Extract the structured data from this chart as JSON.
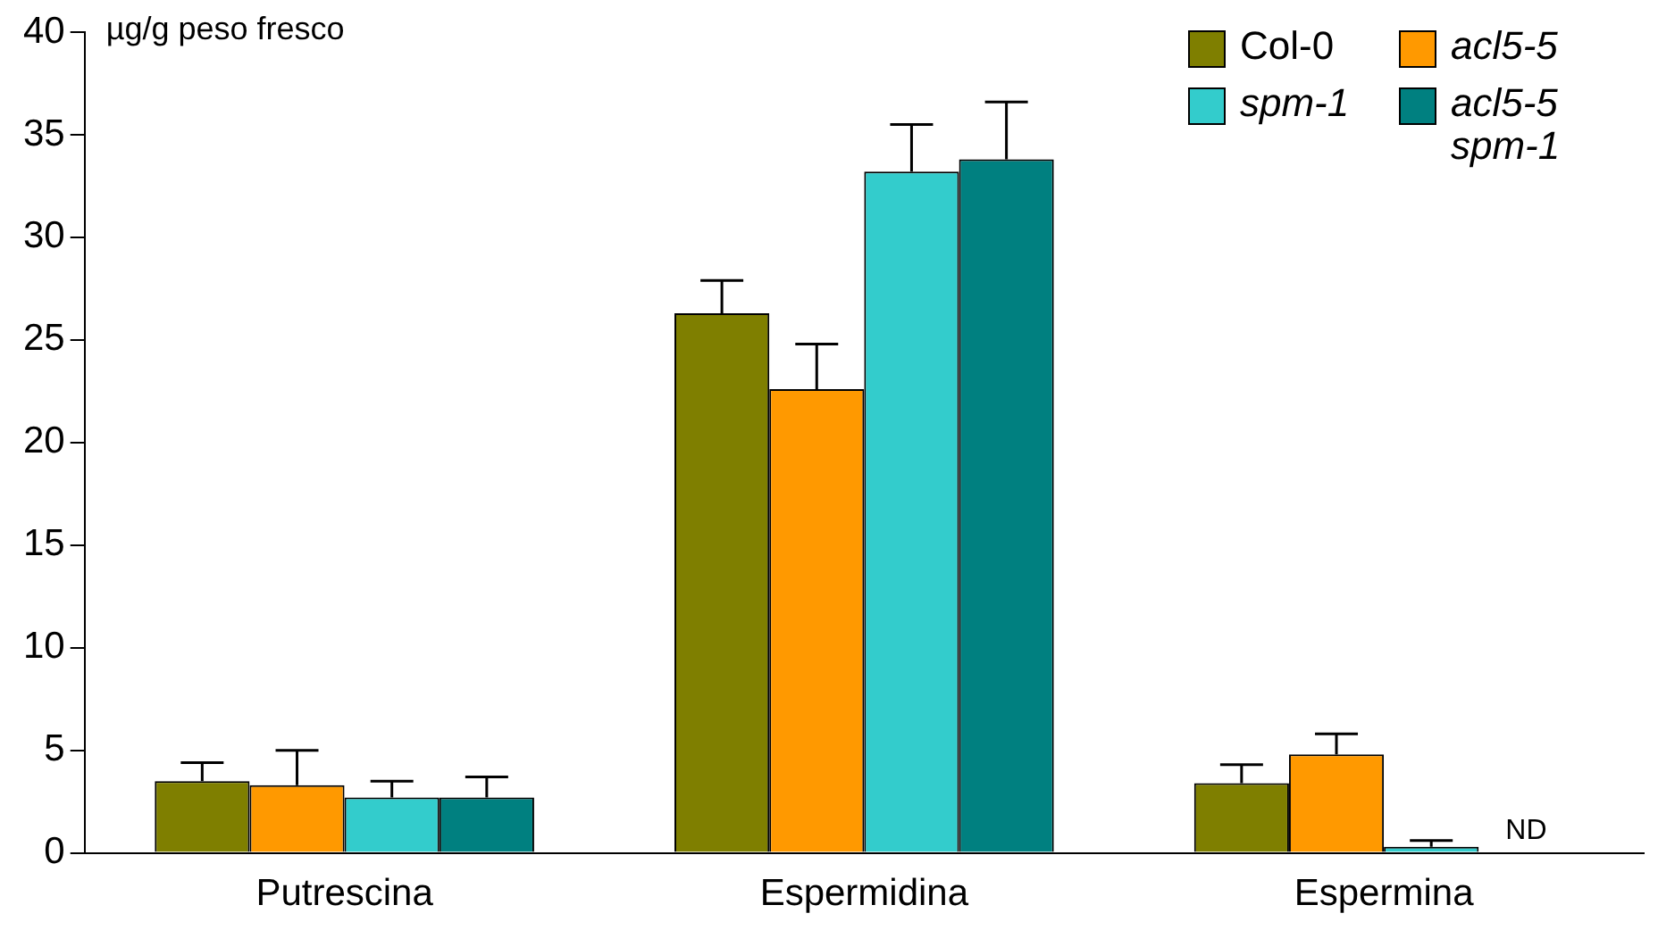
{
  "chart_data": {
    "type": "bar",
    "ylabel": "µg/g peso fresco",
    "categories": [
      "Putrescina",
      "Espermidina",
      "Espermina"
    ],
    "series": [
      {
        "name": "Col-0",
        "color": "#7f7f00",
        "values": [
          3.5,
          26.3,
          3.4
        ],
        "errors": [
          [
            3.5,
            4.4
          ],
          [
            26.3,
            27.9
          ],
          [
            3.4,
            4.3
          ]
        ]
      },
      {
        "name": "acl5-5",
        "color": "#ff9900",
        "values": [
          3.3,
          22.6,
          4.8
        ],
        "errors": [
          [
            3.3,
            5.0
          ],
          [
            22.6,
            24.8
          ],
          [
            4.8,
            5.8
          ]
        ]
      },
      {
        "name": "spm-1",
        "color": "#33cccc",
        "values": [
          2.7,
          33.2,
          0.3
        ],
        "errors": [
          [
            2.7,
            3.5
          ],
          [
            33.2,
            35.5
          ],
          [
            0.3,
            0.6
          ]
        ]
      },
      {
        "name": "acl5-5 spm-1",
        "color": "#008080",
        "values": [
          2.7,
          33.8,
          null
        ],
        "errors": [
          [
            2.7,
            3.7
          ],
          [
            33.8,
            36.6
          ],
          null
        ]
      }
    ],
    "ylim": [
      0,
      40
    ],
    "yticks": [
      0,
      5,
      10,
      15,
      20,
      25,
      30,
      35,
      40
    ],
    "grid": false,
    "legend": "top right",
    "annotations": [
      "ND"
    ]
  }
}
